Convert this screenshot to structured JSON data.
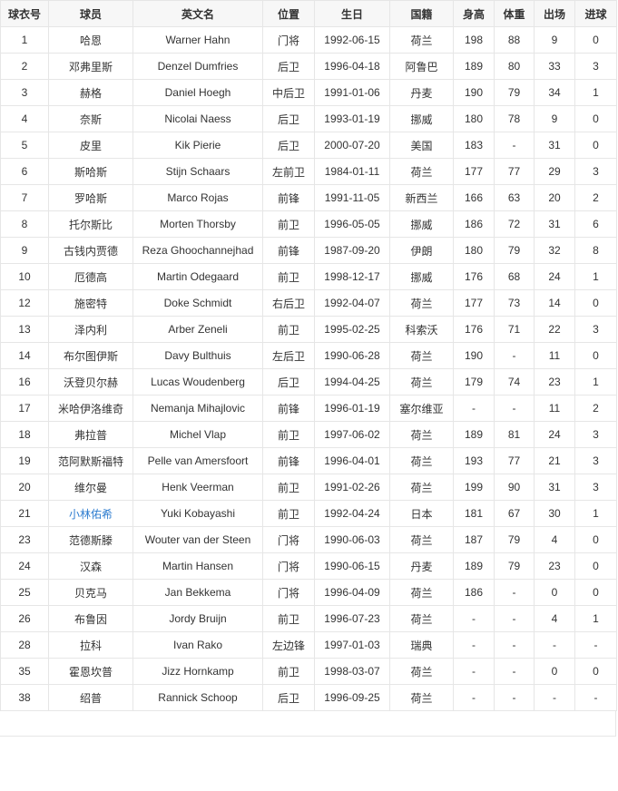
{
  "headers": [
    "球衣号",
    "球员",
    "英文名",
    "位置",
    "生日",
    "国籍",
    "身高",
    "体重",
    "出场",
    "进球"
  ],
  "link_color": "#2d7ccf",
  "rows": [
    [
      "1",
      "哈恩",
      "Warner Hahn",
      "门将",
      "1992-06-15",
      "荷兰",
      "198",
      "88",
      "9",
      "0"
    ],
    [
      "2",
      "邓弗里斯",
      "Denzel Dumfries",
      "后卫",
      "1996-04-18",
      "阿鲁巴",
      "189",
      "80",
      "33",
      "3"
    ],
    [
      "3",
      "赫格",
      "Daniel Hoegh",
      "中后卫",
      "1991-01-06",
      "丹麦",
      "190",
      "79",
      "34",
      "1"
    ],
    [
      "4",
      "奈斯",
      "Nicolai Naess",
      "后卫",
      "1993-01-19",
      "挪威",
      "180",
      "78",
      "9",
      "0"
    ],
    [
      "5",
      "皮里",
      "Kik Pierie",
      "后卫",
      "2000-07-20",
      "美国",
      "183",
      "-",
      "31",
      "0"
    ],
    [
      "6",
      "斯哈斯",
      "Stijn Schaars",
      "左前卫",
      "1984-01-11",
      "荷兰",
      "177",
      "77",
      "29",
      "3"
    ],
    [
      "7",
      "罗哈斯",
      "Marco Rojas",
      "前锋",
      "1991-11-05",
      "新西兰",
      "166",
      "63",
      "20",
      "2"
    ],
    [
      "8",
      "托尔斯比",
      "Morten Thorsby",
      "前卫",
      "1996-05-05",
      "挪威",
      "186",
      "72",
      "31",
      "6"
    ],
    [
      "9",
      "古钱内贾德",
      "Reza Ghoochannejhad",
      "前锋",
      "1987-09-20",
      "伊朗",
      "180",
      "79",
      "32",
      "8"
    ],
    [
      "10",
      "厄德高",
      "Martin Odegaard",
      "前卫",
      "1998-12-17",
      "挪威",
      "176",
      "68",
      "24",
      "1"
    ],
    [
      "12",
      "施密特",
      "Doke Schmidt",
      "右后卫",
      "1992-04-07",
      "荷兰",
      "177",
      "73",
      "14",
      "0"
    ],
    [
      "13",
      "泽内利",
      "Arber Zeneli",
      "前卫",
      "1995-02-25",
      "科索沃",
      "176",
      "71",
      "22",
      "3"
    ],
    [
      "14",
      "布尔图伊斯",
      "Davy Bulthuis",
      "左后卫",
      "1990-06-28",
      "荷兰",
      "190",
      "-",
      "11",
      "0"
    ],
    [
      "16",
      "沃登贝尔赫",
      "Lucas Woudenberg",
      "后卫",
      "1994-04-25",
      "荷兰",
      "179",
      "74",
      "23",
      "1"
    ],
    [
      "17",
      "米哈伊洛维奇",
      "Nemanja Mihajlovic",
      "前锋",
      "1996-01-19",
      "塞尔维亚",
      "-",
      "-",
      "11",
      "2"
    ],
    [
      "18",
      "弗拉普",
      "Michel Vlap",
      "前卫",
      "1997-06-02",
      "荷兰",
      "189",
      "81",
      "24",
      "3"
    ],
    [
      "19",
      "范阿默斯福特",
      "Pelle van Amersfoort",
      "前锋",
      "1996-04-01",
      "荷兰",
      "193",
      "77",
      "21",
      "3"
    ],
    [
      "20",
      "维尔曼",
      "Henk Veerman",
      "前卫",
      "1991-02-26",
      "荷兰",
      "199",
      "90",
      "31",
      "3"
    ],
    [
      "21",
      "小林佑希",
      "Yuki Kobayashi",
      "前卫",
      "1992-04-24",
      "日本",
      "181",
      "67",
      "30",
      "1"
    ],
    [
      "23",
      "范德斯滕",
      "Wouter van der Steen",
      "门将",
      "1990-06-03",
      "荷兰",
      "187",
      "79",
      "4",
      "0"
    ],
    [
      "24",
      "汉森",
      "Martin Hansen",
      "门将",
      "1990-06-15",
      "丹麦",
      "189",
      "79",
      "23",
      "0"
    ],
    [
      "25",
      "贝克马",
      "Jan Bekkema",
      "门将",
      "1996-04-09",
      "荷兰",
      "186",
      "-",
      "0",
      "0"
    ],
    [
      "26",
      "布鲁因",
      "Jordy Bruijn",
      "前卫",
      "1996-07-23",
      "荷兰",
      "-",
      "-",
      "4",
      "1"
    ],
    [
      "28",
      "拉科",
      "Ivan Rako",
      "左边锋",
      "1997-01-03",
      "瑞典",
      "-",
      "-",
      "-",
      "-"
    ],
    [
      "35",
      "霍恩坎普",
      "Jizz Hornkamp",
      "前卫",
      "1998-03-07",
      "荷兰",
      "-",
      "-",
      "0",
      "0"
    ],
    [
      "38",
      "绍普",
      "Rannick Schoop",
      "后卫",
      "1996-09-25",
      "荷兰",
      "-",
      "-",
      "-",
      "-"
    ]
  ],
  "linked_rows": [
    18
  ]
}
